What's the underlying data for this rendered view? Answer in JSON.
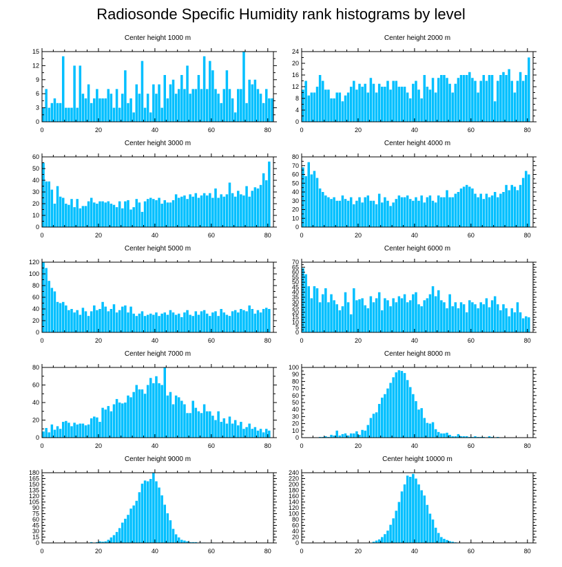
{
  "title": "Radiosonde Specific Humidity rank histograms by level",
  "bar_color": "#00BFFF",
  "chart_data": [
    {
      "type": "bar",
      "title": "Center height 1000 m",
      "x_range": [
        0,
        82
      ],
      "x_ticks": [
        0,
        20,
        40,
        60,
        80
      ],
      "ylim": [
        0,
        15
      ],
      "y_ticks": [
        0,
        3,
        6,
        9,
        12,
        15
      ],
      "values": [
        3,
        7,
        3,
        4,
        5,
        4,
        4,
        14,
        3,
        3,
        3,
        12,
        3,
        12,
        6,
        5,
        8,
        4,
        5,
        7,
        5,
        5,
        5,
        7,
        6,
        3,
        7,
        3,
        6,
        11,
        4,
        5,
        2,
        8,
        6,
        13,
        3,
        6,
        2,
        8,
        6,
        8,
        3,
        10,
        5,
        8,
        9,
        6,
        7,
        10,
        7,
        12,
        6,
        7,
        7,
        10,
        7,
        14,
        7,
        13,
        11,
        7,
        6,
        4,
        7,
        11,
        7,
        5,
        2,
        7,
        7,
        15,
        4,
        9,
        8,
        9,
        7,
        6,
        4,
        7,
        5,
        5
      ]
    },
    {
      "type": "bar",
      "title": "Center height 2000 m",
      "x_range": [
        0,
        82
      ],
      "x_ticks": [
        0,
        20,
        40,
        60,
        80
      ],
      "ylim": [
        0,
        24
      ],
      "y_ticks": [
        0,
        4,
        8,
        12,
        16,
        20,
        24
      ],
      "values": [
        11,
        14,
        9,
        10,
        10,
        12,
        16,
        14,
        11,
        11,
        8,
        8,
        10,
        10,
        7,
        9,
        10,
        12,
        14,
        11,
        13,
        12,
        13,
        10,
        15,
        13,
        10,
        13,
        12,
        12,
        14,
        11,
        14,
        14,
        12,
        12,
        12,
        10,
        8,
        13,
        14,
        11,
        8,
        16,
        12,
        11,
        15,
        10,
        15,
        16,
        16,
        15,
        13,
        10,
        13,
        15,
        16,
        16,
        16,
        17,
        15,
        14,
        10,
        14,
        16,
        14,
        16,
        16,
        7,
        14,
        16,
        17,
        16,
        18,
        14,
        10,
        14,
        17,
        14,
        16,
        22
      ]
    },
    {
      "type": "bar",
      "title": "Center height 3000 m",
      "x_range": [
        0,
        82
      ],
      "x_ticks": [
        0,
        20,
        40,
        60,
        80
      ],
      "ylim": [
        0,
        60
      ],
      "y_ticks": [
        0,
        10,
        20,
        30,
        40,
        50,
        60
      ],
      "values": [
        55,
        39,
        39,
        32,
        20,
        35,
        26,
        25,
        20,
        19,
        24,
        17,
        24,
        16,
        18,
        18,
        22,
        25,
        21,
        20,
        22,
        22,
        21,
        22,
        20,
        19,
        17,
        22,
        16,
        22,
        23,
        15,
        17,
        24,
        21,
        13,
        22,
        24,
        25,
        24,
        23,
        25,
        20,
        23,
        21,
        21,
        23,
        28,
        25,
        26,
        27,
        24,
        28,
        26,
        29,
        25,
        27,
        29,
        27,
        29,
        25,
        33,
        25,
        28,
        26,
        28,
        38,
        29,
        26,
        31,
        28,
        27,
        35,
        26,
        31,
        34,
        33,
        36,
        46,
        40,
        56
      ]
    },
    {
      "type": "bar",
      "title": "Center height 4000 m",
      "x_range": [
        0,
        82
      ],
      "x_ticks": [
        0,
        20,
        40,
        60,
        80
      ],
      "ylim": [
        0,
        80
      ],
      "y_ticks": [
        0,
        10,
        20,
        30,
        40,
        50,
        60,
        70,
        80
      ],
      "values": [
        68,
        58,
        74,
        60,
        64,
        56,
        44,
        40,
        36,
        34,
        32,
        34,
        30,
        30,
        36,
        32,
        30,
        34,
        26,
        30,
        34,
        28,
        34,
        36,
        30,
        30,
        26,
        38,
        28,
        34,
        30,
        24,
        28,
        32,
        36,
        34,
        34,
        36,
        32,
        30,
        34,
        30,
        36,
        28,
        34,
        36,
        30,
        28,
        36,
        34,
        34,
        42,
        34,
        34,
        38,
        40,
        44,
        46,
        48,
        46,
        44,
        38,
        34,
        38,
        32,
        38,
        34,
        36,
        40,
        34,
        38,
        40,
        48,
        42,
        48,
        46,
        42,
        48,
        56,
        64,
        60
      ]
    },
    {
      "type": "bar",
      "title": "Center height 5000 m",
      "x_range": [
        0,
        82
      ],
      "x_ticks": [
        0,
        20,
        40,
        60,
        80
      ],
      "ylim": [
        0,
        120
      ],
      "y_ticks": [
        0,
        20,
        40,
        60,
        80,
        100,
        120
      ],
      "values": [
        120,
        110,
        88,
        76,
        70,
        52,
        50,
        52,
        46,
        38,
        40,
        34,
        38,
        30,
        42,
        36,
        28,
        36,
        46,
        38,
        40,
        52,
        44,
        36,
        40,
        48,
        34,
        38,
        44,
        46,
        34,
        44,
        32,
        28,
        32,
        36,
        28,
        30,
        32,
        30,
        34,
        28,
        32,
        34,
        30,
        38,
        34,
        30,
        32,
        26,
        34,
        38,
        30,
        28,
        36,
        30,
        36,
        38,
        32,
        28,
        34,
        36,
        28,
        40,
        34,
        30,
        28,
        36,
        38,
        34,
        40,
        38,
        36,
        46,
        40,
        32,
        38,
        34,
        40,
        42,
        40
      ]
    },
    {
      "type": "bar",
      "title": "Center height 6000 m",
      "x_range": [
        0,
        82
      ],
      "x_ticks": [
        0,
        20,
        40,
        60,
        80
      ],
      "ylim": [
        0,
        70
      ],
      "y_ticks": [
        0,
        5,
        10,
        15,
        20,
        25,
        30,
        35,
        40,
        45,
        50,
        55,
        60,
        65,
        70
      ],
      "values": [
        64,
        58,
        46,
        34,
        46,
        44,
        30,
        38,
        44,
        30,
        38,
        32,
        28,
        22,
        26,
        40,
        30,
        18,
        44,
        32,
        33,
        34,
        27,
        24,
        36,
        30,
        34,
        40,
        22,
        34,
        32,
        26,
        34,
        30,
        36,
        34,
        38,
        30,
        32,
        38,
        40,
        28,
        26,
        32,
        34,
        38,
        46,
        36,
        42,
        32,
        30,
        24,
        38,
        26,
        30,
        24,
        30,
        28,
        20,
        32,
        30,
        28,
        24,
        30,
        28,
        34,
        25,
        32,
        36,
        28,
        22,
        28,
        24,
        16,
        24,
        20,
        30,
        20,
        14,
        16,
        15
      ]
    },
    {
      "type": "bar",
      "title": "Center height 7000 m",
      "x_range": [
        0,
        82
      ],
      "x_ticks": [
        0,
        20,
        40,
        60,
        80
      ],
      "ylim": [
        0,
        80
      ],
      "y_ticks": [
        0,
        20,
        40,
        60,
        80
      ],
      "values": [
        7,
        11,
        6,
        15,
        9,
        13,
        10,
        18,
        19,
        17,
        13,
        17,
        15,
        16,
        16,
        14,
        15,
        22,
        24,
        23,
        18,
        34,
        32,
        36,
        30,
        38,
        44,
        40,
        39,
        40,
        48,
        46,
        52,
        60,
        55,
        55,
        50,
        60,
        68,
        62,
        70,
        62,
        60,
        80,
        48,
        52,
        38,
        48,
        46,
        42,
        38,
        28,
        28,
        42,
        34,
        30,
        28,
        38,
        30,
        30,
        25,
        20,
        30,
        18,
        22,
        16,
        24,
        16,
        20,
        14,
        18,
        10,
        12,
        16,
        10,
        12,
        8,
        10,
        6,
        10,
        8
      ]
    },
    {
      "type": "bar",
      "title": "Center height 8000 m",
      "x_range": [
        0,
        82
      ],
      "x_ticks": [
        0,
        20,
        40,
        60,
        80
      ],
      "ylim": [
        0,
        100
      ],
      "y_ticks": [
        0,
        10,
        20,
        30,
        40,
        50,
        60,
        70,
        80,
        90,
        100
      ],
      "values": [
        0,
        0,
        0,
        0,
        0,
        0,
        1,
        1,
        2,
        1,
        4,
        3,
        10,
        3,
        5,
        6,
        3,
        6,
        6,
        9,
        4,
        11,
        10,
        18,
        28,
        34,
        36,
        48,
        57,
        62,
        70,
        78,
        86,
        93,
        96,
        95,
        92,
        82,
        72,
        62,
        52,
        40,
        42,
        28,
        21,
        20,
        22,
        12,
        8,
        6,
        6,
        7,
        4,
        2,
        2,
        5,
        2,
        2,
        2,
        1,
        1,
        2,
        1,
        1,
        1,
        0,
        2,
        1,
        0,
        1
      ]
    },
    {
      "type": "bar",
      "title": "Center height 9000 m",
      "x_range": [
        0,
        82
      ],
      "x_ticks": [
        0,
        20,
        40,
        60,
        80
      ],
      "ylim": [
        0,
        180
      ],
      "y_ticks": [
        0,
        15,
        30,
        45,
        60,
        75,
        90,
        105,
        120,
        135,
        150,
        165,
        180
      ],
      "values": [
        0,
        0,
        0,
        0,
        0,
        0,
        0,
        0,
        0,
        0,
        0,
        0,
        0,
        0,
        0,
        0,
        0,
        2,
        0,
        2,
        4,
        3,
        4,
        8,
        14,
        20,
        28,
        38,
        52,
        62,
        72,
        88,
        96,
        108,
        130,
        152,
        160,
        158,
        164,
        180,
        158,
        142,
        122,
        98,
        76,
        58,
        36,
        22,
        14,
        8,
        6,
        4,
        2,
        2,
        2,
        1,
        1,
        1,
        0,
        0,
        1,
        0,
        0,
        0,
        0,
        0,
        0,
        0,
        0,
        1
      ]
    },
    {
      "type": "bar",
      "title": "Center height 10000 m",
      "x_range": [
        0,
        82
      ],
      "x_ticks": [
        0,
        20,
        40,
        60,
        80
      ],
      "ylim": [
        0,
        240
      ],
      "y_ticks": [
        0,
        20,
        40,
        60,
        80,
        100,
        120,
        140,
        160,
        180,
        200,
        220,
        240
      ],
      "values": [
        0,
        0,
        0,
        0,
        0,
        0,
        0,
        0,
        0,
        0,
        0,
        0,
        0,
        0,
        0,
        0,
        0,
        0,
        0,
        0,
        0,
        0,
        0,
        0,
        0,
        4,
        8,
        12,
        20,
        30,
        42,
        62,
        84,
        110,
        140,
        176,
        200,
        230,
        226,
        236,
        220,
        200,
        180,
        162,
        130,
        100,
        80,
        52,
        34,
        20,
        14,
        10,
        6,
        4,
        2,
        1,
        1,
        1
      ]
    }
  ]
}
